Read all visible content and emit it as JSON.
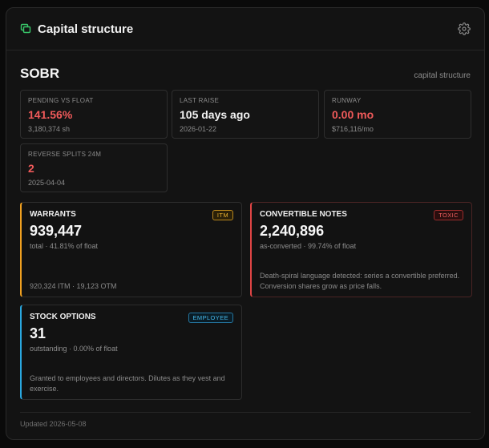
{
  "header": {
    "title": "Capital structure",
    "accent": "#39c86a"
  },
  "ticker": "SOBR",
  "subtag": "capital structure",
  "stats": {
    "pending": {
      "label": "PENDING VS FLOAT",
      "value": "141.56%",
      "sub": "3,180,374 sh"
    },
    "raise": {
      "label": "LAST RAISE",
      "value": "105 days ago",
      "sub": "2026-01-22"
    },
    "runway": {
      "label": "RUNWAY",
      "value": "0.00 mo",
      "sub": "$716,116/mo"
    },
    "splits": {
      "label": "REVERSE SPLITS 24M",
      "value": "2",
      "sub": "2025-04-04"
    }
  },
  "warrants": {
    "title": "WARRANTS",
    "badge": "ITM",
    "value": "939,447",
    "meta": "total · 41.81% of float",
    "desc": "920,324 ITM · 19,123 OTM",
    "accent": "#f0a020"
  },
  "notes": {
    "title": "CONVERTIBLE NOTES",
    "badge": "TOXIC",
    "value": "2,240,896",
    "meta": "as-converted · 99.74% of float",
    "desc": "Death-spiral language detected: series a convertible preferred. Conversion shares grow as price falls.",
    "accent": "#e04545"
  },
  "options": {
    "title": "STOCK OPTIONS",
    "badge": "EMPLOYEE",
    "value": "31",
    "meta": "outstanding · 0.00% of float",
    "desc": "Granted to employees and directors. Dilutes as they vest and exercise.",
    "accent": "#2aa8e0"
  },
  "footer": "Updated 2026-05-08"
}
